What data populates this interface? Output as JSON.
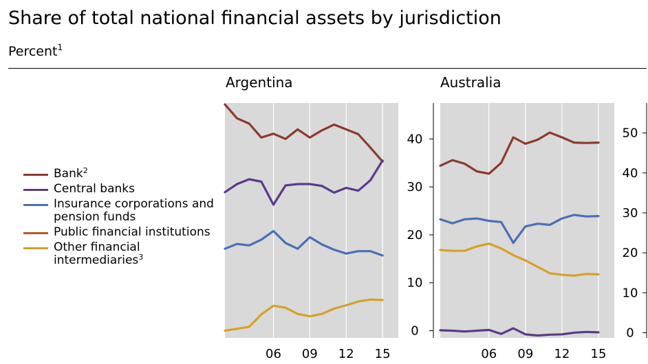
{
  "title": "Share of total national financial assets by jurisdiction",
  "subtitle": "Percent",
  "subtitle_note": "1",
  "legend": [
    {
      "name": "Bank",
      "note": "2",
      "color": "#8b3a2f"
    },
    {
      "name": "Central banks",
      "note": "",
      "color": "#5b3a86"
    },
    {
      "name": "Insurance corporations and pension funds",
      "note": "",
      "color": "#4a6fb3"
    },
    {
      "name": "Public financial institutions",
      "note": "",
      "color": "#b5562c"
    },
    {
      "name": "Other financial intermediaries",
      "note": "3",
      "color": "#d4a12a"
    }
  ],
  "chart_data": [
    {
      "type": "line",
      "title": "Argentina",
      "x": [
        2002,
        2003,
        2004,
        2005,
        2006,
        2007,
        2008,
        2009,
        2010,
        2011,
        2012,
        2013,
        2014,
        2015
      ],
      "xlim": [
        2002,
        2016.3
      ],
      "x_tick_values": [
        2006,
        2009,
        2012,
        2015
      ],
      "x_tick_labels": [
        "06",
        "09",
        "12",
        "15"
      ],
      "ylim": [
        -1.5,
        47.5
      ],
      "y_ticks": [
        0,
        10,
        20,
        30,
        40
      ],
      "grid": true,
      "y_axis_position": "right",
      "series": [
        {
          "name": "Bank",
          "color": "#8b3a2f",
          "values": [
            47.2,
            44.3,
            43.2,
            40.3,
            41.1,
            40.0,
            42.0,
            40.3,
            41.8,
            43.0,
            42.0,
            41.0,
            38.2,
            35.3
          ]
        },
        {
          "name": "Central banks",
          "color": "#5b3a86",
          "values": [
            28.9,
            30.6,
            31.6,
            31.1,
            26.3,
            30.3,
            30.6,
            30.6,
            30.2,
            28.8,
            29.8,
            29.2,
            31.4,
            35.5
          ]
        },
        {
          "name": "Insurance corporations and pension funds",
          "color": "#4a6fb3",
          "values": [
            17.1,
            18.1,
            17.8,
            19.0,
            20.8,
            18.3,
            17.1,
            19.5,
            18.0,
            16.9,
            16.1,
            16.6,
            16.6,
            15.7
          ]
        },
        {
          "name": "Other financial intermediaries",
          "color": "#d4a12a",
          "values": [
            0.0,
            0.4,
            0.8,
            3.4,
            5.2,
            4.8,
            3.5,
            3.0,
            3.5,
            4.6,
            5.3,
            6.1,
            6.5,
            6.4
          ]
        }
      ]
    },
    {
      "type": "line",
      "title": "Australia",
      "x": [
        2002,
        2003,
        2004,
        2005,
        2006,
        2007,
        2008,
        2009,
        2010,
        2011,
        2012,
        2013,
        2014,
        2015
      ],
      "xlim": [
        2002,
        2016.3
      ],
      "x_tick_values": [
        2006,
        2009,
        2012,
        2015
      ],
      "x_tick_labels": [
        "06",
        "09",
        "12",
        "15"
      ],
      "ylim": [
        -1.3,
        57.5
      ],
      "y_ticks": [
        0,
        10,
        20,
        30,
        40,
        50
      ],
      "grid": true,
      "y_axis_position": "right",
      "series": [
        {
          "name": "Bank",
          "color": "#8b3a2f",
          "values": [
            41.8,
            43.2,
            42.3,
            40.4,
            39.8,
            42.5,
            48.9,
            47.3,
            48.3,
            50.1,
            48.9,
            47.6,
            47.5,
            47.6
          ]
        },
        {
          "name": "Central banks",
          "color": "#5b3a86",
          "values": [
            0.6,
            0.5,
            0.3,
            0.5,
            0.7,
            -0.3,
            1.1,
            -0.4,
            -0.7,
            -0.5,
            -0.4,
            0.0,
            0.2,
            0.1
          ]
        },
        {
          "name": "Insurance corporations and pension funds",
          "color": "#4a6fb3",
          "values": [
            28.4,
            27.4,
            28.4,
            28.6,
            28.0,
            27.7,
            22.5,
            26.6,
            27.3,
            27.0,
            28.6,
            29.5,
            29.1,
            29.2
          ]
        },
        {
          "name": "Other financial intermediaries",
          "color": "#d4a12a",
          "values": [
            20.7,
            20.5,
            20.5,
            21.6,
            22.3,
            21.1,
            19.4,
            18.1,
            16.5,
            14.9,
            14.5,
            14.3,
            14.7,
            14.6
          ]
        }
      ]
    }
  ]
}
